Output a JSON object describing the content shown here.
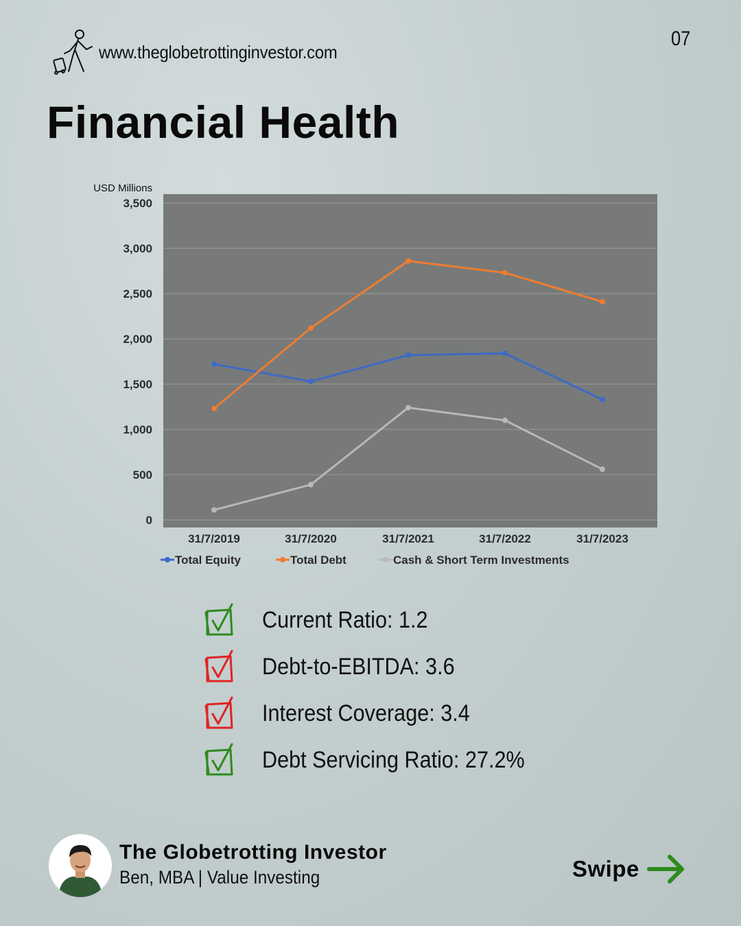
{
  "header": {
    "website": "www.theglobetrottinginvestor.com",
    "page_number": "07",
    "title": "Financial Health"
  },
  "chart_data": {
    "type": "line",
    "title": "",
    "ylabel": "USD Millions",
    "xlabel": "",
    "categories": [
      "31/7/2019",
      "31/7/2020",
      "31/7/2021",
      "31/7/2022",
      "31/7/2023"
    ],
    "ylim": [
      0,
      3500
    ],
    "yticks": [
      0,
      500,
      1000,
      1500,
      2000,
      2500,
      3000,
      3500
    ],
    "ytick_labels": [
      "0",
      "500",
      "1,000",
      "1,500",
      "2,000",
      "2,500",
      "3,000",
      "3,500"
    ],
    "grid": true,
    "legend_position": "bottom",
    "series": [
      {
        "name": "Total Equity",
        "color": "#3e6ac6",
        "values": [
          1720,
          1530,
          1820,
          1840,
          1330
        ]
      },
      {
        "name": "Total Debt",
        "color": "#ef7d2f",
        "values": [
          1230,
          2120,
          2860,
          2730,
          2410
        ]
      },
      {
        "name": "Cash & Short Term Investments",
        "color": "#b8b8b8",
        "values": [
          110,
          390,
          1240,
          1100,
          560
        ]
      }
    ],
    "colors": {
      "plot_bg": "#777a79",
      "gridline": "#9a9c9b",
      "tick_text": "#2b2b2b"
    }
  },
  "metrics": [
    {
      "label": "Current Ratio: 1.2",
      "status": "pass",
      "color": "#2e8b1e"
    },
    {
      "label": "Debt-to-EBITDA: 3.6",
      "status": "fail",
      "color": "#e02424"
    },
    {
      "label": "Interest Coverage: 3.4",
      "status": "fail",
      "color": "#e02424"
    },
    {
      "label": "Debt Servicing Ratio: 27.2%",
      "status": "pass",
      "color": "#2e8b1e"
    }
  ],
  "footer": {
    "brand_name": "The Globetrotting Investor",
    "brand_subtitle": "Ben, MBA | Value Investing",
    "swipe_label": "Swipe",
    "arrow_color": "#2e8b1e"
  }
}
